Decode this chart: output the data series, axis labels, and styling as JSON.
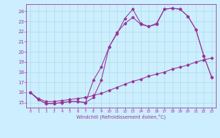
{
  "xlabel": "Windchill (Refroidissement éolien,°C)",
  "bg_color": "#cceeff",
  "grid_color": "#aadddd",
  "line_color": "#993399",
  "xlim": [
    -0.5,
    23.5
  ],
  "ylim": [
    14.5,
    24.7
  ],
  "yticks": [
    15,
    16,
    17,
    18,
    19,
    20,
    21,
    22,
    23,
    24
  ],
  "xticks": [
    0,
    1,
    2,
    3,
    4,
    5,
    6,
    7,
    8,
    9,
    10,
    11,
    12,
    13,
    14,
    15,
    16,
    17,
    18,
    19,
    20,
    21,
    22,
    23
  ],
  "line1_x": [
    0,
    1,
    2,
    3,
    4,
    5,
    6,
    7,
    8,
    9,
    10,
    11,
    12,
    13,
    14,
    15,
    16,
    17,
    18,
    19,
    20,
    21,
    22,
    23
  ],
  "line1_y": [
    16.0,
    15.3,
    14.9,
    14.9,
    15.0,
    15.1,
    15.1,
    15.0,
    17.2,
    18.5,
    20.5,
    21.8,
    23.3,
    24.2,
    22.8,
    22.5,
    22.8,
    24.2,
    24.3,
    24.2,
    23.5,
    22.2,
    19.6,
    17.5
  ],
  "line2_x": [
    0,
    1,
    2,
    3,
    4,
    5,
    6,
    7,
    8,
    9,
    10,
    11,
    12,
    13,
    14,
    15,
    16,
    17,
    18,
    19,
    20,
    21,
    22,
    23
  ],
  "line2_y": [
    16.0,
    15.3,
    14.9,
    14.9,
    15.0,
    15.1,
    15.1,
    15.0,
    15.5,
    17.2,
    20.5,
    21.9,
    22.8,
    23.4,
    22.7,
    22.5,
    22.7,
    24.2,
    24.3,
    24.2,
    23.5,
    22.2,
    19.6,
    17.5
  ],
  "line3_x": [
    0,
    1,
    2,
    3,
    4,
    5,
    6,
    7,
    8,
    9,
    10,
    11,
    12,
    13,
    14,
    15,
    16,
    17,
    18,
    19,
    20,
    21,
    22,
    23
  ],
  "line3_y": [
    16.0,
    15.4,
    15.1,
    15.1,
    15.2,
    15.3,
    15.4,
    15.5,
    15.7,
    15.9,
    16.2,
    16.5,
    16.8,
    17.1,
    17.3,
    17.6,
    17.8,
    18.0,
    18.3,
    18.5,
    18.7,
    19.0,
    19.2,
    19.4
  ]
}
